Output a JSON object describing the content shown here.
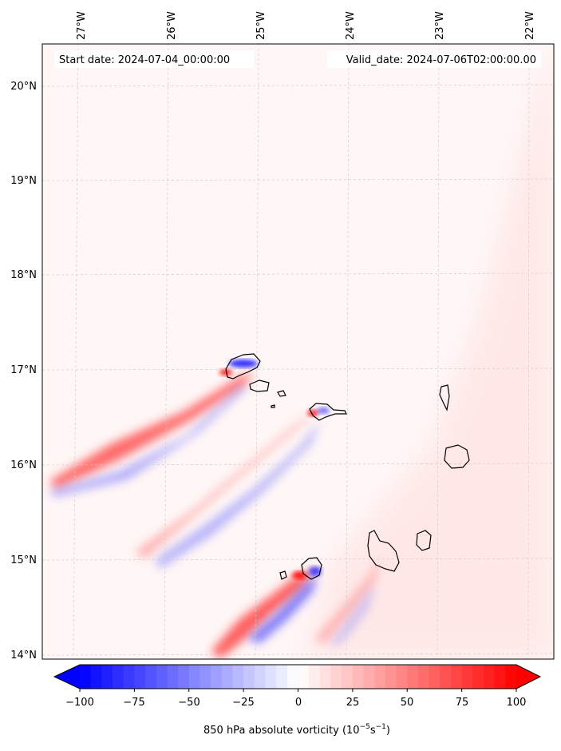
{
  "map": {
    "header": {
      "start_date": "Start date: 2024-07-04_00:00:00",
      "valid_date": "Valid_date: 2024-07-06T02:00:00.00"
    },
    "lon_ticks": [
      "27°W",
      "26°W",
      "25°W",
      "24°W",
      "23°W",
      "22°W"
    ],
    "lat_ticks": [
      "20°N",
      "19°N",
      "18°N",
      "17°N",
      "16°N",
      "15°N",
      "14°N"
    ],
    "extent": {
      "lon_min": -27.35,
      "lon_max": -21.8,
      "lat_min": 13.95,
      "lat_max": 20.45
    }
  },
  "colorbar": {
    "ticks": [
      "−100",
      "−75",
      "−50",
      "−25",
      "0",
      "25",
      "50",
      "75",
      "100"
    ],
    "label": "850 hPa absolute vorticity",
    "units_base": "(10",
    "units_exp1": "−5",
    "units_mid": "s",
    "units_exp2": "−1",
    "units_end": ")",
    "range": [
      -100,
      100
    ],
    "steps": 40,
    "colors": {
      "neg": "#0000ff",
      "zero": "#ffffff",
      "pos": "#ff0000"
    }
  }
}
